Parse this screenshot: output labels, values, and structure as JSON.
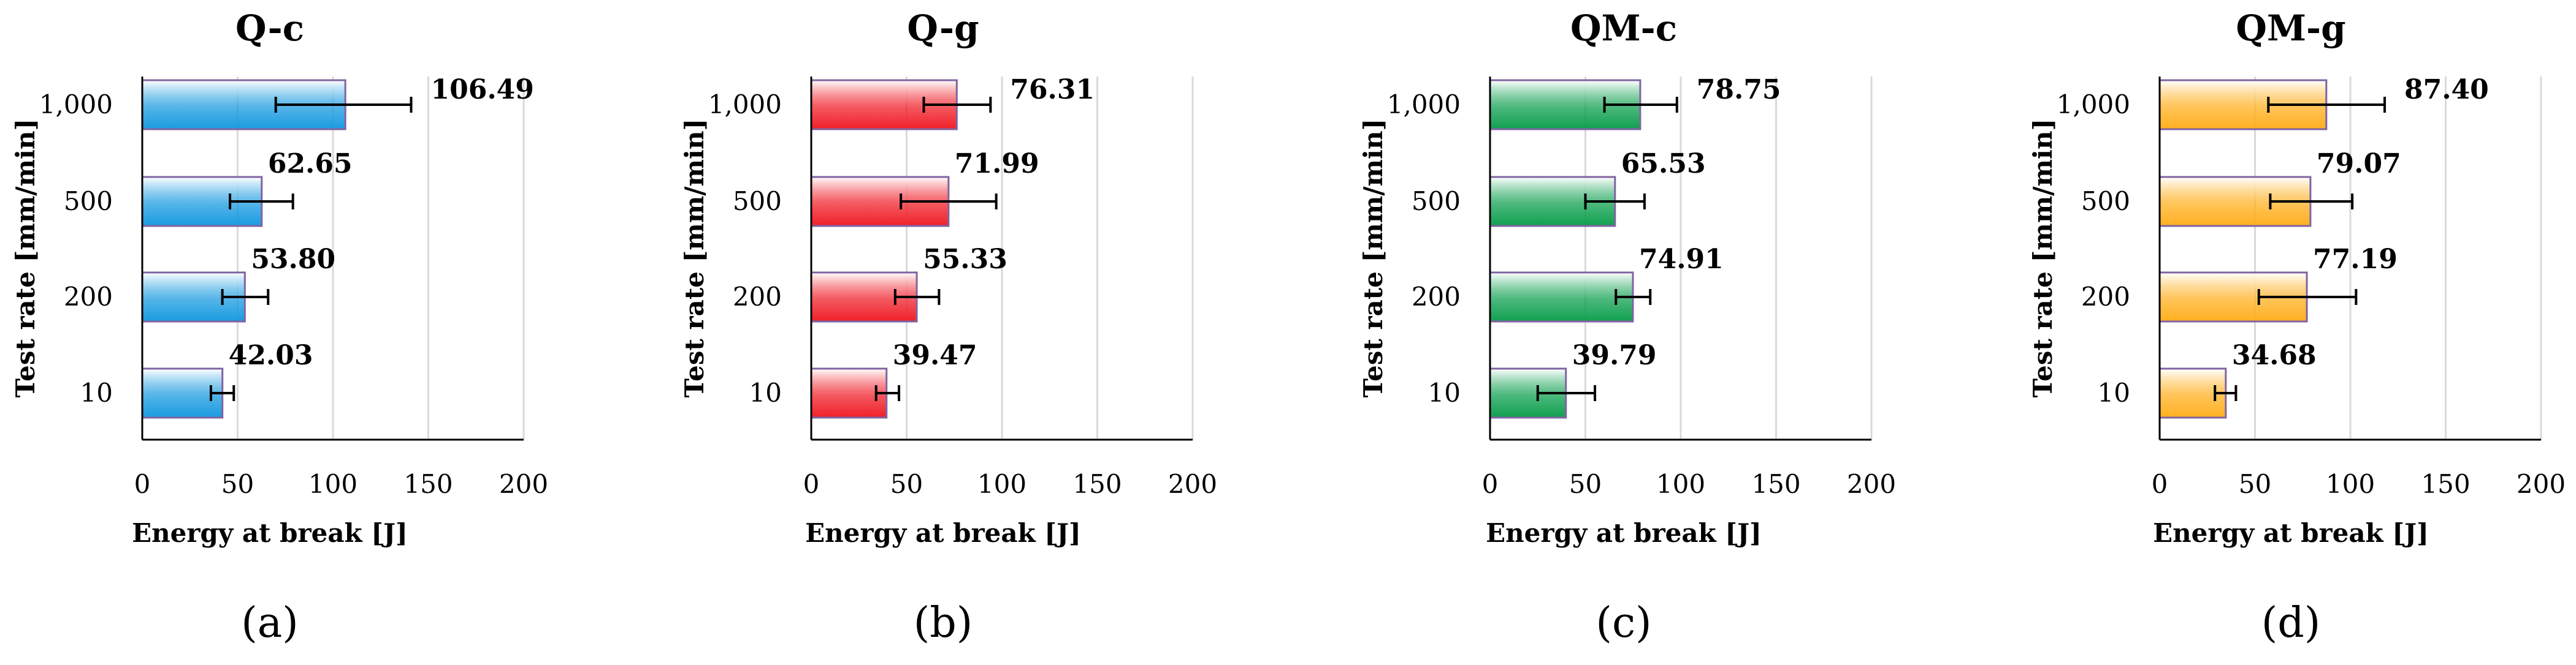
{
  "figure_labels": [
    "(a)",
    "(b)",
    "(c)",
    "(d)"
  ],
  "chart_data": [
    {
      "type": "bar",
      "orientation": "horizontal",
      "title": "Q-c",
      "xlabel": "Energy at break [J]",
      "ylabel": "Test rate [mm/min]",
      "categories": [
        "1,000",
        "500",
        "200",
        "10"
      ],
      "values": [
        106.49,
        62.65,
        53.8,
        42.03
      ],
      "value_labels": [
        "106.49",
        "62.65",
        "53.80",
        "42.03"
      ],
      "error_low": [
        70,
        46,
        42,
        36
      ],
      "error_high": [
        141,
        79,
        66,
        48
      ],
      "xlim": [
        0,
        200
      ],
      "xticks": [
        "0",
        "50",
        "100",
        "150",
        "200"
      ],
      "bar_color": "#1a9be0",
      "bar_outline": "#8064a2",
      "grid": true
    },
    {
      "type": "bar",
      "orientation": "horizontal",
      "title": "Q-g",
      "xlabel": "Energy at break [J]",
      "ylabel": "Test rate [mm/min]",
      "categories": [
        "1,000",
        "500",
        "200",
        "10"
      ],
      "values": [
        76.31,
        71.99,
        55.33,
        39.47
      ],
      "value_labels": [
        "76.31",
        "71.99",
        "55.33",
        "39.47"
      ],
      "error_low": [
        59,
        47,
        44,
        34
      ],
      "error_high": [
        94,
        97,
        67,
        46
      ],
      "xlim": [
        0,
        200
      ],
      "xticks": [
        "0",
        "50",
        "100",
        "150",
        "200"
      ],
      "bar_color": "#f0202a",
      "bar_outline": "#8064a2",
      "grid": true
    },
    {
      "type": "bar",
      "orientation": "horizontal",
      "title": "QM-c",
      "xlabel": "Energy at break [J]",
      "ylabel": "Test rate [mm/min]",
      "categories": [
        "1,000",
        "500",
        "200",
        "10"
      ],
      "values": [
        78.75,
        65.53,
        74.91,
        39.79
      ],
      "value_labels": [
        "78.75",
        "65.53",
        "74.91",
        "39.79"
      ],
      "error_low": [
        60,
        50,
        66,
        25
      ],
      "error_high": [
        98,
        81,
        84,
        55
      ],
      "xlim": [
        0,
        200
      ],
      "xticks": [
        "0",
        "50",
        "100",
        "150",
        "200"
      ],
      "bar_color": "#10a050",
      "bar_outline": "#8064a2",
      "grid": true
    },
    {
      "type": "bar",
      "orientation": "horizontal",
      "title": "QM-g",
      "xlabel": "Energy at break [J]",
      "ylabel": "Test rate [mm/min]",
      "categories": [
        "1,000",
        "500",
        "200",
        "10"
      ],
      "values": [
        87.4,
        79.07,
        77.19,
        34.68
      ],
      "value_labels": [
        "87.40",
        "79.07",
        "77.19",
        "34.68"
      ],
      "error_low": [
        57,
        58,
        52,
        29
      ],
      "error_high": [
        118,
        101,
        103,
        40
      ],
      "xlim": [
        0,
        200
      ],
      "xticks": [
        "0",
        "50",
        "100",
        "150",
        "200"
      ],
      "bar_color": "#ffb020",
      "bar_outline": "#8064a2",
      "grid": true
    }
  ]
}
